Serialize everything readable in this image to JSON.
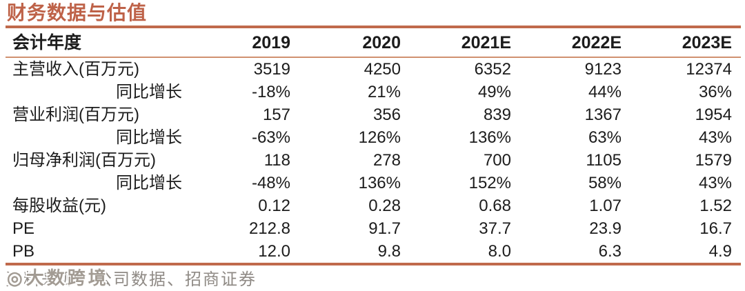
{
  "title": "财务数据与估值",
  "table": {
    "header": [
      "会计年度",
      "2019",
      "2020",
      "2021E",
      "2022E",
      "2023E"
    ],
    "rows": [
      {
        "label": "主营收入(百万元)",
        "values": [
          "3519",
          "4250",
          "6352",
          "9123",
          "12374"
        ]
      },
      {
        "label": "同比增长",
        "values": [
          "-18%",
          "21%",
          "49%",
          "44%",
          "36%"
        ]
      },
      {
        "label": "营业利润(百万元)",
        "values": [
          "157",
          "356",
          "839",
          "1367",
          "1954"
        ]
      },
      {
        "label": "同比增长",
        "values": [
          "-63%",
          "126%",
          "136%",
          "63%",
          "43%"
        ]
      },
      {
        "label": "归母净利润(百万元)",
        "values": [
          "118",
          "278",
          "700",
          "1105",
          "1579"
        ]
      },
      {
        "label": "同比增长",
        "values": [
          "-48%",
          "136%",
          "152%",
          "58%",
          "43%"
        ]
      },
      {
        "label": "每股收益(元)",
        "values": [
          "0.12",
          "0.28",
          "0.68",
          "1.07",
          "1.52"
        ]
      },
      {
        "label": "PE",
        "values": [
          "212.8",
          "91.7",
          "37.7",
          "23.9",
          "16.7"
        ]
      },
      {
        "label": "PB",
        "values": [
          "12.0",
          "9.8",
          "8.0",
          "6.3",
          "4.9"
        ]
      }
    ]
  },
  "footer": {
    "source": "资料来源：公司数据、招商证券",
    "watermark": "大数跨境",
    "watermark_logo": "◎"
  },
  "colors": {
    "accent": "#BE6248",
    "rule_thick": "#C06A4C",
    "rule_thin": "#D0906F",
    "text": "#1C1C1C",
    "footer_text": "#8F8A85",
    "watermark_color": "#A29B93"
  }
}
